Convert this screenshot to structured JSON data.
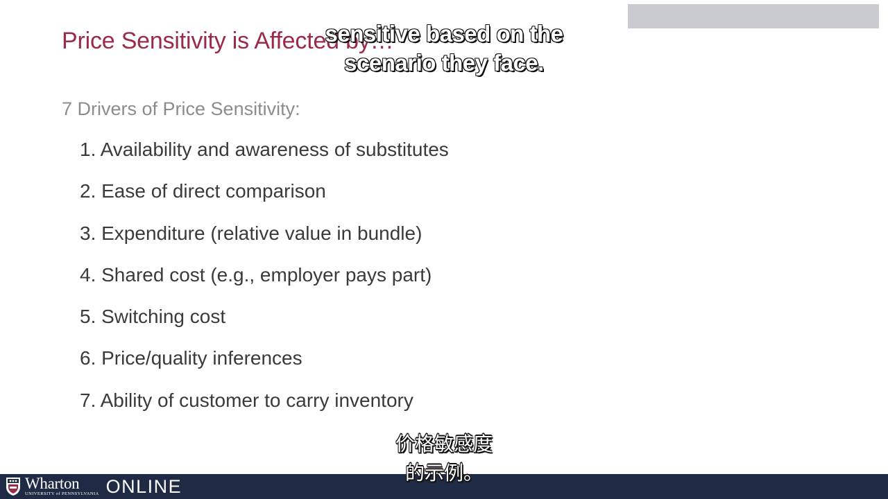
{
  "slide": {
    "title": "Price Sensitivity is Affected by…",
    "heading": "7 Drivers of Price Sensitivity:",
    "drivers": [
      "1. Availability and awareness of substitutes",
      "2. Ease of direct comparison",
      "3. Expenditure (relative value in bundle)",
      "4. Shared cost (e.g., employer pays part)",
      "5. Switching cost",
      "6. Price/quality inferences",
      "7. Ability of customer to carry inventory"
    ]
  },
  "captions": {
    "english_line1": "sensitive based on the",
    "english_line2": "scenario they face.",
    "chinese_line1": "价格敏感度",
    "chinese_line2": "的示例。"
  },
  "footer": {
    "logo_name": "Wharton",
    "logo_university": "UNIVERSITY of PENNSYLVANIA",
    "logo_online": "ONLINE",
    "bar_color": "#1f2a44"
  },
  "colors": {
    "title": "#9b2a47",
    "heading": "#8c8c8c",
    "body_text": "#3a3a3a"
  }
}
